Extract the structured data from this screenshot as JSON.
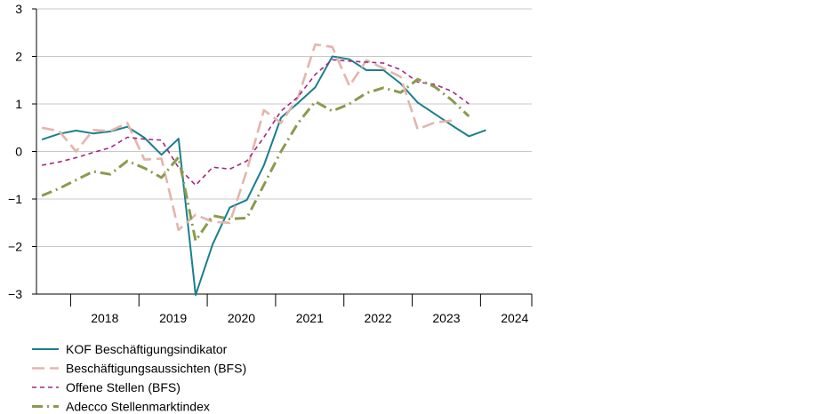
{
  "chart_data": {
    "type": "line",
    "title": "",
    "xlabel": "",
    "ylabel": "",
    "ylim": [
      -3,
      3
    ],
    "yticks": [
      "3",
      "2",
      "1",
      "0",
      "−1",
      "−2",
      "−3"
    ],
    "yticks_values": [
      3,
      2,
      1,
      0,
      -1,
      -2,
      -3
    ],
    "xlim": [
      2017.5,
      2024.75
    ],
    "year_labels": [
      "2018",
      "2019",
      "2020",
      "2021",
      "2022",
      "2023",
      "2024"
    ],
    "grid": "horizontal",
    "legend_position": "bottom-left",
    "series": [
      {
        "name": "KOF Beschäftigungsindikator",
        "color": "#1a7f8e",
        "style": "solid",
        "points": [
          [
            2017.58,
            0.25
          ],
          [
            2017.83,
            0.37
          ],
          [
            2018.08,
            0.44
          ],
          [
            2018.33,
            0.38
          ],
          [
            2018.58,
            0.42
          ],
          [
            2018.83,
            0.52
          ],
          [
            2019.08,
            0.29
          ],
          [
            2019.33,
            -0.07
          ],
          [
            2019.58,
            0.27
          ],
          [
            2019.83,
            -3.02
          ],
          [
            2020.08,
            -1.95
          ],
          [
            2020.33,
            -1.18
          ],
          [
            2020.58,
            -1.02
          ],
          [
            2020.83,
            -0.29
          ],
          [
            2021.08,
            0.71
          ],
          [
            2021.33,
            1.02
          ],
          [
            2021.58,
            1.35
          ],
          [
            2021.83,
            2.0
          ],
          [
            2022.08,
            1.94
          ],
          [
            2022.33,
            1.71
          ],
          [
            2022.58,
            1.71
          ],
          [
            2022.83,
            1.43
          ],
          [
            2023.08,
            1.03
          ],
          [
            2023.33,
            0.79
          ],
          [
            2023.58,
            0.55
          ],
          [
            2023.83,
            0.32
          ],
          [
            2024.08,
            0.45
          ]
        ]
      },
      {
        "name": "Beschäftigungsaussichten (BFS)",
        "color": "#e3b5ad",
        "style": "longdash",
        "points": [
          [
            2017.58,
            0.5
          ],
          [
            2017.83,
            0.43
          ],
          [
            2018.08,
            0.0
          ],
          [
            2018.33,
            0.45
          ],
          [
            2018.58,
            0.43
          ],
          [
            2018.83,
            0.6
          ],
          [
            2019.08,
            -0.17
          ],
          [
            2019.33,
            -0.15
          ],
          [
            2019.58,
            -1.65
          ],
          [
            2019.83,
            -1.33
          ],
          [
            2020.08,
            -1.48
          ],
          [
            2020.33,
            -1.5
          ],
          [
            2020.58,
            -0.4
          ],
          [
            2020.83,
            0.87
          ],
          [
            2021.08,
            0.6
          ],
          [
            2021.33,
            1.14
          ],
          [
            2021.58,
            2.25
          ],
          [
            2021.83,
            2.2
          ],
          [
            2022.08,
            1.38
          ],
          [
            2022.33,
            1.92
          ],
          [
            2022.58,
            1.75
          ],
          [
            2022.83,
            1.57
          ],
          [
            2023.08,
            0.47
          ],
          [
            2023.33,
            0.61
          ],
          [
            2023.58,
            0.65
          ]
        ]
      },
      {
        "name": "Offene Stellen (BFS)",
        "color": "#a3287e",
        "style": "shortdash",
        "points": [
          [
            2017.58,
            -0.29
          ],
          [
            2017.83,
            -0.22
          ],
          [
            2018.08,
            -0.13
          ],
          [
            2018.33,
            -0.02
          ],
          [
            2018.58,
            0.08
          ],
          [
            2018.83,
            0.3
          ],
          [
            2019.08,
            0.26
          ],
          [
            2019.33,
            0.24
          ],
          [
            2019.58,
            -0.34
          ],
          [
            2019.83,
            -0.71
          ],
          [
            2020.08,
            -0.33
          ],
          [
            2020.33,
            -0.37
          ],
          [
            2020.58,
            -0.2
          ],
          [
            2020.83,
            0.3
          ],
          [
            2021.08,
            0.85
          ],
          [
            2021.33,
            1.15
          ],
          [
            2021.58,
            1.62
          ],
          [
            2021.83,
            1.93
          ],
          [
            2022.08,
            1.9
          ],
          [
            2022.33,
            1.88
          ],
          [
            2022.58,
            1.86
          ],
          [
            2022.83,
            1.72
          ],
          [
            2023.08,
            1.46
          ],
          [
            2023.33,
            1.41
          ],
          [
            2023.58,
            1.27
          ],
          [
            2023.83,
            1.0
          ]
        ]
      },
      {
        "name": "Adecco Stellenmarktindex",
        "color": "#8a9a4e",
        "style": "dashdot",
        "points": [
          [
            2017.58,
            -0.93
          ],
          [
            2017.83,
            -0.78
          ],
          [
            2018.08,
            -0.6
          ],
          [
            2018.33,
            -0.42
          ],
          [
            2018.58,
            -0.48
          ],
          [
            2018.83,
            -0.2
          ],
          [
            2019.08,
            -0.35
          ],
          [
            2019.33,
            -0.55
          ],
          [
            2019.58,
            -0.12
          ],
          [
            2019.83,
            -1.88
          ],
          [
            2020.08,
            -1.35
          ],
          [
            2020.33,
            -1.42
          ],
          [
            2020.58,
            -1.4
          ],
          [
            2020.83,
            -0.7
          ],
          [
            2021.08,
            0.0
          ],
          [
            2021.33,
            0.6
          ],
          [
            2021.58,
            1.05
          ],
          [
            2021.83,
            0.85
          ],
          [
            2022.08,
            1.0
          ],
          [
            2022.33,
            1.23
          ],
          [
            2022.58,
            1.34
          ],
          [
            2022.83,
            1.24
          ],
          [
            2023.08,
            1.52
          ],
          [
            2023.33,
            1.36
          ],
          [
            2023.58,
            1.08
          ],
          [
            2023.83,
            0.74
          ]
        ]
      }
    ]
  }
}
